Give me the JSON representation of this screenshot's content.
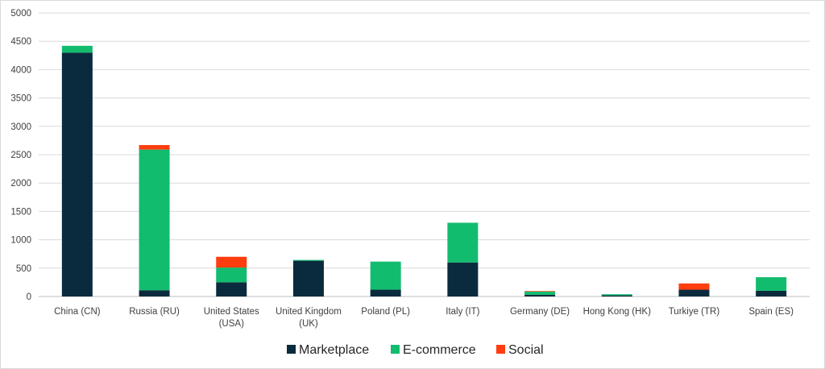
{
  "chart_data": {
    "type": "bar",
    "stacked": true,
    "categories": [
      [
        "China (CN)"
      ],
      [
        "Russia (RU)"
      ],
      [
        "United States",
        "(USA)"
      ],
      [
        "United Kingdom",
        "(UK)"
      ],
      [
        "Poland (PL)"
      ],
      [
        "Italy (IT)"
      ],
      [
        "Germany (DE)"
      ],
      [
        "Hong Kong (HK)"
      ],
      [
        "Turkiye (TR)"
      ],
      [
        "Spain (ES)"
      ]
    ],
    "series": [
      {
        "name": "Marketplace",
        "color": "#0a2b3d",
        "values": [
          4300,
          110,
          250,
          630,
          120,
          600,
          30,
          20,
          120,
          100
        ]
      },
      {
        "name": "E-commerce",
        "color": "#12bc6e",
        "values": [
          120,
          2480,
          260,
          15,
          495,
          700,
          55,
          20,
          0,
          240
        ]
      },
      {
        "name": "Social",
        "color": "#ff3d0f",
        "values": [
          0,
          80,
          190,
          0,
          0,
          0,
          10,
          0,
          110,
          0
        ]
      }
    ],
    "y_ticks": [
      "0",
      "500",
      "1000",
      "1500",
      "2000",
      "2500",
      "3000",
      "3500",
      "4000",
      "4500",
      "5000"
    ],
    "ylim": [
      0,
      5000
    ],
    "grid": true,
    "legend_position": "bottom"
  }
}
